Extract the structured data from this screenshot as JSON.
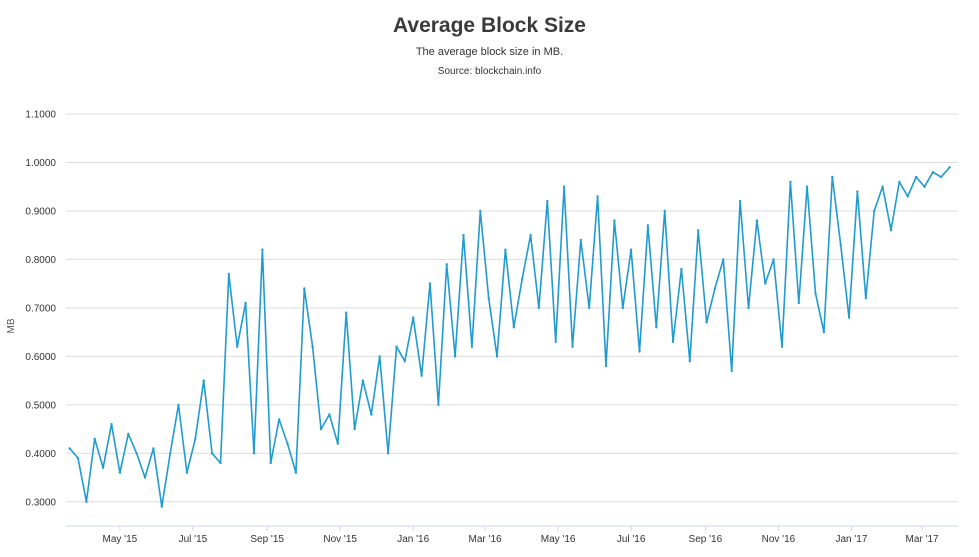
{
  "chart_data": {
    "type": "line",
    "title": "Average Block Size",
    "subtitle": "The average block size in MB.",
    "source": "Source: blockchain.info",
    "xlabel": "",
    "ylabel": "MB",
    "ylim": [
      0.25,
      1.1
    ],
    "grid": true,
    "line_color": "#1f9bd1",
    "y_ticks": [
      "0.3000",
      "0.4000",
      "0.5000",
      "0.6000",
      "0.7000",
      "0.8000",
      "0.9000",
      "1.0000",
      "1.1000"
    ],
    "x_ticks": [
      "May '15",
      "Jul '15",
      "Sep '15",
      "Nov '15",
      "Jan '16",
      "Mar '16",
      "May '16",
      "Jul '16",
      "Sep '16",
      "Nov '16",
      "Jan '17",
      "Mar '17"
    ],
    "series": [
      {
        "x": [
          "2015-03-20",
          "2015-03-27",
          "2015-04-03",
          "2015-04-10",
          "2015-04-17",
          "2015-04-24",
          "2015-05-01",
          "2015-05-08",
          "2015-05-15",
          "2015-05-22",
          "2015-05-29",
          "2015-06-05",
          "2015-06-12",
          "2015-06-19",
          "2015-06-26",
          "2015-07-03",
          "2015-07-10",
          "2015-07-17",
          "2015-07-24",
          "2015-07-31",
          "2015-08-07",
          "2015-08-14",
          "2015-08-21",
          "2015-08-28",
          "2015-09-04",
          "2015-09-11",
          "2015-09-18",
          "2015-09-25",
          "2015-10-02",
          "2015-10-09",
          "2015-10-16",
          "2015-10-23",
          "2015-10-30",
          "2015-11-06",
          "2015-11-13",
          "2015-11-20",
          "2015-11-27",
          "2015-12-04",
          "2015-12-11",
          "2015-12-18",
          "2015-12-25",
          "2016-01-01",
          "2016-01-08",
          "2016-01-15",
          "2016-01-22",
          "2016-01-29",
          "2016-02-05",
          "2016-02-12",
          "2016-02-19",
          "2016-02-26",
          "2016-03-04",
          "2016-03-11",
          "2016-03-18",
          "2016-03-25",
          "2016-04-01",
          "2016-04-08",
          "2016-04-15",
          "2016-04-22",
          "2016-04-29",
          "2016-05-06",
          "2016-05-13",
          "2016-05-20",
          "2016-05-27",
          "2016-06-03",
          "2016-06-10",
          "2016-06-17",
          "2016-06-24",
          "2016-07-01",
          "2016-07-08",
          "2016-07-15",
          "2016-07-22",
          "2016-07-29",
          "2016-08-05",
          "2016-08-12",
          "2016-08-19",
          "2016-08-26",
          "2016-09-02",
          "2016-09-09",
          "2016-09-16",
          "2016-09-23",
          "2016-09-30",
          "2016-10-07",
          "2016-10-14",
          "2016-10-21",
          "2016-10-28",
          "2016-11-04",
          "2016-11-11",
          "2016-11-18",
          "2016-11-25",
          "2016-12-02",
          "2016-12-09",
          "2016-12-16",
          "2016-12-23",
          "2016-12-30",
          "2017-01-06",
          "2017-01-13",
          "2017-01-20",
          "2017-01-27",
          "2017-02-03",
          "2017-02-10",
          "2017-02-17",
          "2017-02-24",
          "2017-03-03",
          "2017-03-10",
          "2017-03-17",
          "2017-03-24"
        ],
        "values": [
          0.41,
          0.39,
          0.3,
          0.43,
          0.37,
          0.46,
          0.36,
          0.44,
          0.4,
          0.35,
          0.41,
          0.29,
          0.4,
          0.5,
          0.36,
          0.43,
          0.55,
          0.4,
          0.38,
          0.77,
          0.62,
          0.71,
          0.4,
          0.82,
          0.38,
          0.47,
          0.42,
          0.36,
          0.74,
          0.62,
          0.45,
          0.48,
          0.42,
          0.69,
          0.45,
          0.55,
          0.48,
          0.6,
          0.4,
          0.62,
          0.59,
          0.68,
          0.56,
          0.75,
          0.5,
          0.79,
          0.6,
          0.85,
          0.62,
          0.9,
          0.72,
          0.6,
          0.82,
          0.66,
          0.76,
          0.85,
          0.7,
          0.92,
          0.63,
          0.95,
          0.62,
          0.84,
          0.7,
          0.93,
          0.58,
          0.88,
          0.7,
          0.82,
          0.61,
          0.87,
          0.66,
          0.9,
          0.63,
          0.78,
          0.59,
          0.86,
          0.67,
          0.74,
          0.8,
          0.57,
          0.92,
          0.7,
          0.88,
          0.75,
          0.8,
          0.62,
          0.96,
          0.71,
          0.95,
          0.73,
          0.65,
          0.97,
          0.83,
          0.68,
          0.94,
          0.72,
          0.9,
          0.95,
          0.86,
          0.96,
          0.93,
          0.97,
          0.95,
          0.98,
          0.97,
          0.99
        ]
      }
    ]
  }
}
